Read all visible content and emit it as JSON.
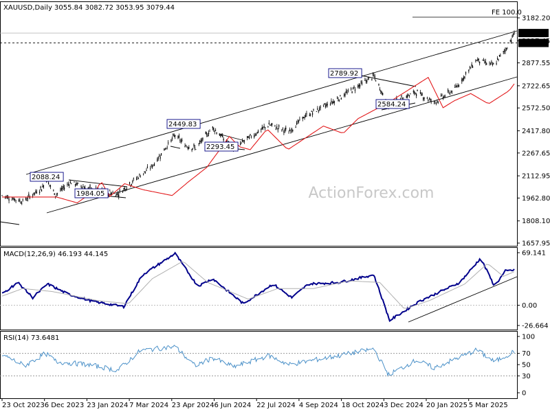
{
  "header": {
    "symbol_tf": "XAUUSD,Daily",
    "ohlc": "3055.84 3082.72 3053.95 3079.44"
  },
  "watermark": "ActionForex.com",
  "colors": {
    "candle": "#000000",
    "ma": "#e31a1c",
    "macd_line": "#00008b",
    "signal_line": "#b0b0b0",
    "rsi_line": "#4a90c8",
    "label_border": "#000080",
    "price_tag_bg": "#000000",
    "price_tag_fg": "#ffffff",
    "trendline": "#000000"
  },
  "chart_data": [
    {
      "type": "candlestick",
      "panel": "price",
      "title": "XAUUSD,Daily",
      "ylim": [
        1657.95,
        3250
      ],
      "y_ticks": [
        "3182.20",
        "3027.45",
        "2877.55",
        "2722.65",
        "2572.50",
        "2417.80",
        "2267.65",
        "2112.95",
        "1962.80",
        "1808.10",
        "1657.95"
      ],
      "x_ticks": [
        "23 Oct 2023",
        "6 Dec 2023",
        "23 Jan 2024",
        "7 Mar 2024",
        "23 Apr 2024",
        "6 Jun 2024",
        "22 Jul 2024",
        "4 Sep 2024",
        "18 Oct 2024",
        "3 Dec 2024",
        "20 Jan 2025",
        "5 Mar 2025"
      ],
      "last_price": "3079.44",
      "level_price": "3012.37",
      "fe_label": "FE 100.0",
      "annotations": [
        "2088.24",
        "1984.05",
        "2449.83",
        "2293.45",
        "2789.92",
        "2584.24"
      ],
      "close_keypoints": [
        {
          "date": "2023-10-20",
          "close": 1980
        },
        {
          "date": "2023-11-10",
          "close": 1940
        },
        {
          "date": "2023-11-30",
          "close": 2035
        },
        {
          "date": "2023-12-04",
          "close": 2088
        },
        {
          "date": "2023-12-13",
          "close": 1984
        },
        {
          "date": "2023-12-28",
          "close": 2070
        },
        {
          "date": "2024-01-15",
          "close": 2030
        },
        {
          "date": "2024-02-14",
          "close": 1990
        },
        {
          "date": "2024-03-01",
          "close": 2080
        },
        {
          "date": "2024-03-20",
          "close": 2180
        },
        {
          "date": "2024-04-12",
          "close": 2390
        },
        {
          "date": "2024-04-22",
          "close": 2320
        },
        {
          "date": "2024-05-03",
          "close": 2300
        },
        {
          "date": "2024-05-20",
          "close": 2440
        },
        {
          "date": "2024-06-10",
          "close": 2300
        },
        {
          "date": "2024-07-16",
          "close": 2460
        },
        {
          "date": "2024-08-05",
          "close": 2410
        },
        {
          "date": "2024-08-20",
          "close": 2510
        },
        {
          "date": "2024-09-20",
          "close": 2620
        },
        {
          "date": "2024-10-30",
          "close": 2789
        },
        {
          "date": "2024-11-14",
          "close": 2584
        },
        {
          "date": "2024-11-25",
          "close": 2630
        },
        {
          "date": "2024-12-12",
          "close": 2680
        },
        {
          "date": "2024-12-30",
          "close": 2610
        },
        {
          "date": "2025-01-20",
          "close": 2700
        },
        {
          "date": "2025-02-11",
          "close": 2900
        },
        {
          "date": "2025-02-28",
          "close": 2860
        },
        {
          "date": "2025-03-14",
          "close": 2985
        },
        {
          "date": "2025-03-21",
          "close": 3079
        }
      ]
    },
    {
      "type": "line",
      "panel": "macd",
      "title": "MACD(12,26,9) 46.193 44.145",
      "ylim": [
        -26.664,
        69.141
      ],
      "y_ticks": [
        "69.141",
        "0.00",
        "-26.664"
      ],
      "series": [
        {
          "name": "MACD",
          "keypoints": [
            {
              "date": "2023-10-20",
              "value": 15
            },
            {
              "date": "2023-11-05",
              "value": 30
            },
            {
              "date": "2023-11-20",
              "value": 10
            },
            {
              "date": "2023-12-05",
              "value": 28
            },
            {
              "date": "2023-12-25",
              "value": 15
            },
            {
              "date": "2024-01-20",
              "value": 5
            },
            {
              "date": "2024-02-20",
              "value": -2
            },
            {
              "date": "2024-03-10",
              "value": 40
            },
            {
              "date": "2024-04-12",
              "value": 68
            },
            {
              "date": "2024-05-05",
              "value": 25
            },
            {
              "date": "2024-05-20",
              "value": 35
            },
            {
              "date": "2024-06-20",
              "value": 2
            },
            {
              "date": "2024-07-20",
              "value": 28
            },
            {
              "date": "2024-08-08",
              "value": 10
            },
            {
              "date": "2024-08-25",
              "value": 28
            },
            {
              "date": "2024-09-25",
              "value": 30
            },
            {
              "date": "2024-10-30",
              "value": 40
            },
            {
              "date": "2024-11-15",
              "value": -20
            },
            {
              "date": "2024-12-15",
              "value": 5
            },
            {
              "date": "2025-01-25",
              "value": 30
            },
            {
              "date": "2025-02-15",
              "value": 62
            },
            {
              "date": "2025-03-01",
              "value": 25
            },
            {
              "date": "2025-03-12",
              "value": 45
            },
            {
              "date": "2025-03-21",
              "value": 46.193
            }
          ]
        },
        {
          "name": "Signal",
          "keypoints": [
            {
              "date": "2023-10-20",
              "value": 12
            },
            {
              "date": "2023-11-10",
              "value": 22
            },
            {
              "date": "2023-12-10",
              "value": 18
            },
            {
              "date": "2024-01-25",
              "value": 6
            },
            {
              "date": "2024-02-25",
              "value": 2
            },
            {
              "date": "2024-03-20",
              "value": 35
            },
            {
              "date": "2024-04-20",
              "value": 58
            },
            {
              "date": "2024-05-15",
              "value": 30
            },
            {
              "date": "2024-06-25",
              "value": 8
            },
            {
              "date": "2024-07-25",
              "value": 22
            },
            {
              "date": "2024-08-30",
              "value": 22
            },
            {
              "date": "2024-10-05",
              "value": 32
            },
            {
              "date": "2024-11-05",
              "value": 30
            },
            {
              "date": "2024-11-30",
              "value": -5
            },
            {
              "date": "2024-12-25",
              "value": 6
            },
            {
              "date": "2025-01-30",
              "value": 28
            },
            {
              "date": "2025-02-22",
              "value": 55
            },
            {
              "date": "2025-03-10",
              "value": 38
            },
            {
              "date": "2025-03-21",
              "value": 44.145
            }
          ]
        }
      ]
    },
    {
      "type": "line",
      "panel": "rsi",
      "title": "RSI(14) 73.6481",
      "ylim": [
        0,
        100
      ],
      "y_ticks": [
        "100",
        "70",
        "50",
        "30",
        "0"
      ],
      "series": [
        {
          "name": "RSI",
          "keypoints": [
            {
              "date": "2023-10-20",
              "value": 68
            },
            {
              "date": "2023-11-12",
              "value": 48
            },
            {
              "date": "2023-12-03",
              "value": 70
            },
            {
              "date": "2023-12-14",
              "value": 55
            },
            {
              "date": "2024-01-15",
              "value": 50
            },
            {
              "date": "2024-02-14",
              "value": 40
            },
            {
              "date": "2024-03-08",
              "value": 75
            },
            {
              "date": "2024-04-12",
              "value": 82
            },
            {
              "date": "2024-05-02",
              "value": 48
            },
            {
              "date": "2024-05-20",
              "value": 62
            },
            {
              "date": "2024-06-10",
              "value": 46
            },
            {
              "date": "2024-07-16",
              "value": 66
            },
            {
              "date": "2024-08-05",
              "value": 50
            },
            {
              "date": "2024-09-25",
              "value": 66
            },
            {
              "date": "2024-10-30",
              "value": 78
            },
            {
              "date": "2024-11-14",
              "value": 32
            },
            {
              "date": "2024-12-12",
              "value": 58
            },
            {
              "date": "2024-12-30",
              "value": 44
            },
            {
              "date": "2025-02-11",
              "value": 76
            },
            {
              "date": "2025-03-01",
              "value": 55
            },
            {
              "date": "2025-03-21",
              "value": 73.6481
            }
          ]
        }
      ]
    }
  ]
}
